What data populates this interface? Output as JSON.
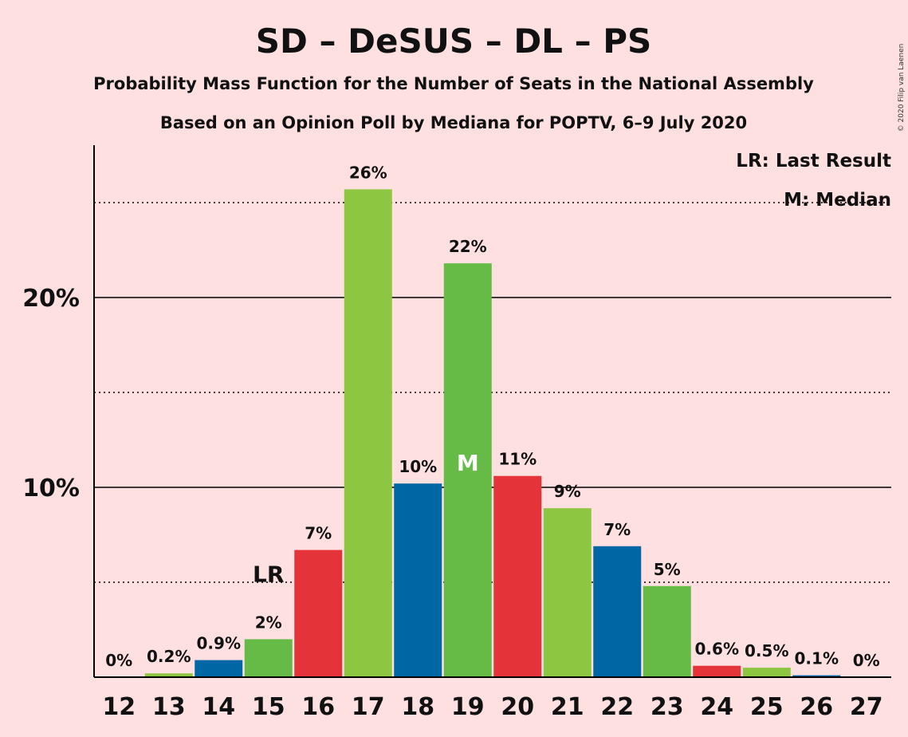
{
  "title": "SD – DeSUS – DL – PS",
  "subtitle_1": "Probability Mass Function for the Number of Seats in the National Assembly",
  "subtitle_2": "Based on an Opinion Poll by Mediana for POPTV, 6–9 July 2020",
  "copyright": "© 2020 Filip van Laenen",
  "legend": {
    "lr": "LR: Last Result",
    "median": "M: Median"
  },
  "markers": {
    "lr_label": "LR",
    "lr_seat": 15,
    "median_label": "M",
    "median_seat": 19
  },
  "colors": {
    "background": "#FFE0E0",
    "SD": "#E4343A",
    "DeSUS": "#8DC640",
    "DL": "#0066A4",
    "PS": "#66BB46"
  },
  "chart_data": {
    "type": "bar",
    "categories": [
      "12",
      "13",
      "14",
      "15",
      "16",
      "17",
      "18",
      "19",
      "20",
      "21",
      "22",
      "23",
      "24",
      "25",
      "26",
      "27"
    ],
    "values": [
      0,
      0.2,
      0.9,
      2.0,
      6.7,
      25.7,
      10.2,
      21.8,
      10.6,
      8.9,
      6.9,
      4.8,
      0.6,
      0.5,
      0.1,
      0
    ],
    "value_labels": [
      "0%",
      "0.2%",
      "0.9%",
      "2%",
      "7%",
      "26%",
      "10%",
      "22%",
      "11%",
      "9%",
      "7%",
      "5%",
      "0.6%",
      "0.5%",
      "0.1%",
      "0%"
    ],
    "bar_colors": [
      "#66BB46",
      "#8DC640",
      "#0066A4",
      "#66BB46",
      "#E4343A",
      "#8DC640",
      "#0066A4",
      "#66BB46",
      "#E4343A",
      "#8DC640",
      "#0066A4",
      "#66BB46",
      "#E4343A",
      "#8DC640",
      "#0066A4",
      "#66BB46"
    ],
    "y_ticks": [
      {
        "value": 10,
        "label": "10%"
      },
      {
        "value": 20,
        "label": "20%"
      }
    ],
    "ylim": [
      0,
      28
    ],
    "grid": {
      "solid": [
        10,
        20
      ],
      "dotted": [
        5,
        15,
        25
      ]
    },
    "xlabel": "",
    "ylabel": ""
  }
}
